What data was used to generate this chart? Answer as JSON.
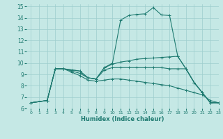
{
  "xlabel": "Humidex (Indice chaleur)",
  "xlim": [
    -0.5,
    23
  ],
  "ylim": [
    6,
    15.2
  ],
  "xticks": [
    0,
    1,
    2,
    3,
    4,
    5,
    6,
    7,
    8,
    9,
    10,
    11,
    12,
    13,
    14,
    15,
    16,
    17,
    18,
    19,
    20,
    21,
    22,
    23
  ],
  "yticks": [
    6,
    7,
    8,
    9,
    10,
    11,
    12,
    13,
    14,
    15
  ],
  "background_color": "#c5e8e5",
  "grid_color": "#9ecece",
  "line_color": "#1e7a70",
  "lines": [
    {
      "x": [
        0,
        2,
        3,
        4,
        5,
        6,
        7,
        8,
        9,
        10,
        11,
        12,
        13,
        14,
        15,
        16,
        17,
        18,
        19,
        20,
        21,
        22,
        23
      ],
      "y": [
        6.5,
        6.7,
        9.5,
        9.5,
        9.4,
        9.3,
        8.7,
        8.6,
        9.6,
        10.0,
        13.8,
        14.2,
        14.3,
        14.35,
        14.9,
        14.25,
        14.2,
        10.6,
        9.5,
        8.3,
        7.4,
        6.5,
        6.5
      ]
    },
    {
      "x": [
        0,
        2,
        3,
        4,
        5,
        6,
        7,
        8,
        9,
        10,
        11,
        12,
        13,
        14,
        15,
        16,
        17,
        18,
        19,
        20,
        21,
        22,
        23
      ],
      "y": [
        6.5,
        6.7,
        9.5,
        9.5,
        9.4,
        9.3,
        8.7,
        8.6,
        9.6,
        9.9,
        10.1,
        10.2,
        10.35,
        10.4,
        10.45,
        10.5,
        10.55,
        10.6,
        9.5,
        8.3,
        7.4,
        6.5,
        6.5
      ]
    },
    {
      "x": [
        0,
        2,
        3,
        4,
        5,
        6,
        7,
        8,
        9,
        10,
        11,
        12,
        13,
        14,
        15,
        16,
        17,
        18,
        19,
        20,
        21,
        22,
        23
      ],
      "y": [
        6.5,
        6.7,
        9.5,
        9.5,
        9.3,
        9.1,
        8.7,
        8.6,
        9.4,
        9.6,
        9.6,
        9.6,
        9.6,
        9.6,
        9.6,
        9.6,
        9.5,
        9.5,
        9.5,
        8.3,
        7.4,
        6.5,
        6.5
      ]
    },
    {
      "x": [
        0,
        2,
        3,
        4,
        5,
        6,
        7,
        8,
        9,
        10,
        11,
        12,
        13,
        14,
        15,
        16,
        17,
        18,
        19,
        20,
        21,
        22,
        23
      ],
      "y": [
        6.5,
        6.7,
        9.5,
        9.5,
        9.2,
        8.9,
        8.5,
        8.4,
        8.5,
        8.6,
        8.6,
        8.5,
        8.4,
        8.3,
        8.2,
        8.1,
        8.0,
        7.8,
        7.6,
        7.4,
        7.2,
        6.7,
        6.5
      ]
    }
  ]
}
